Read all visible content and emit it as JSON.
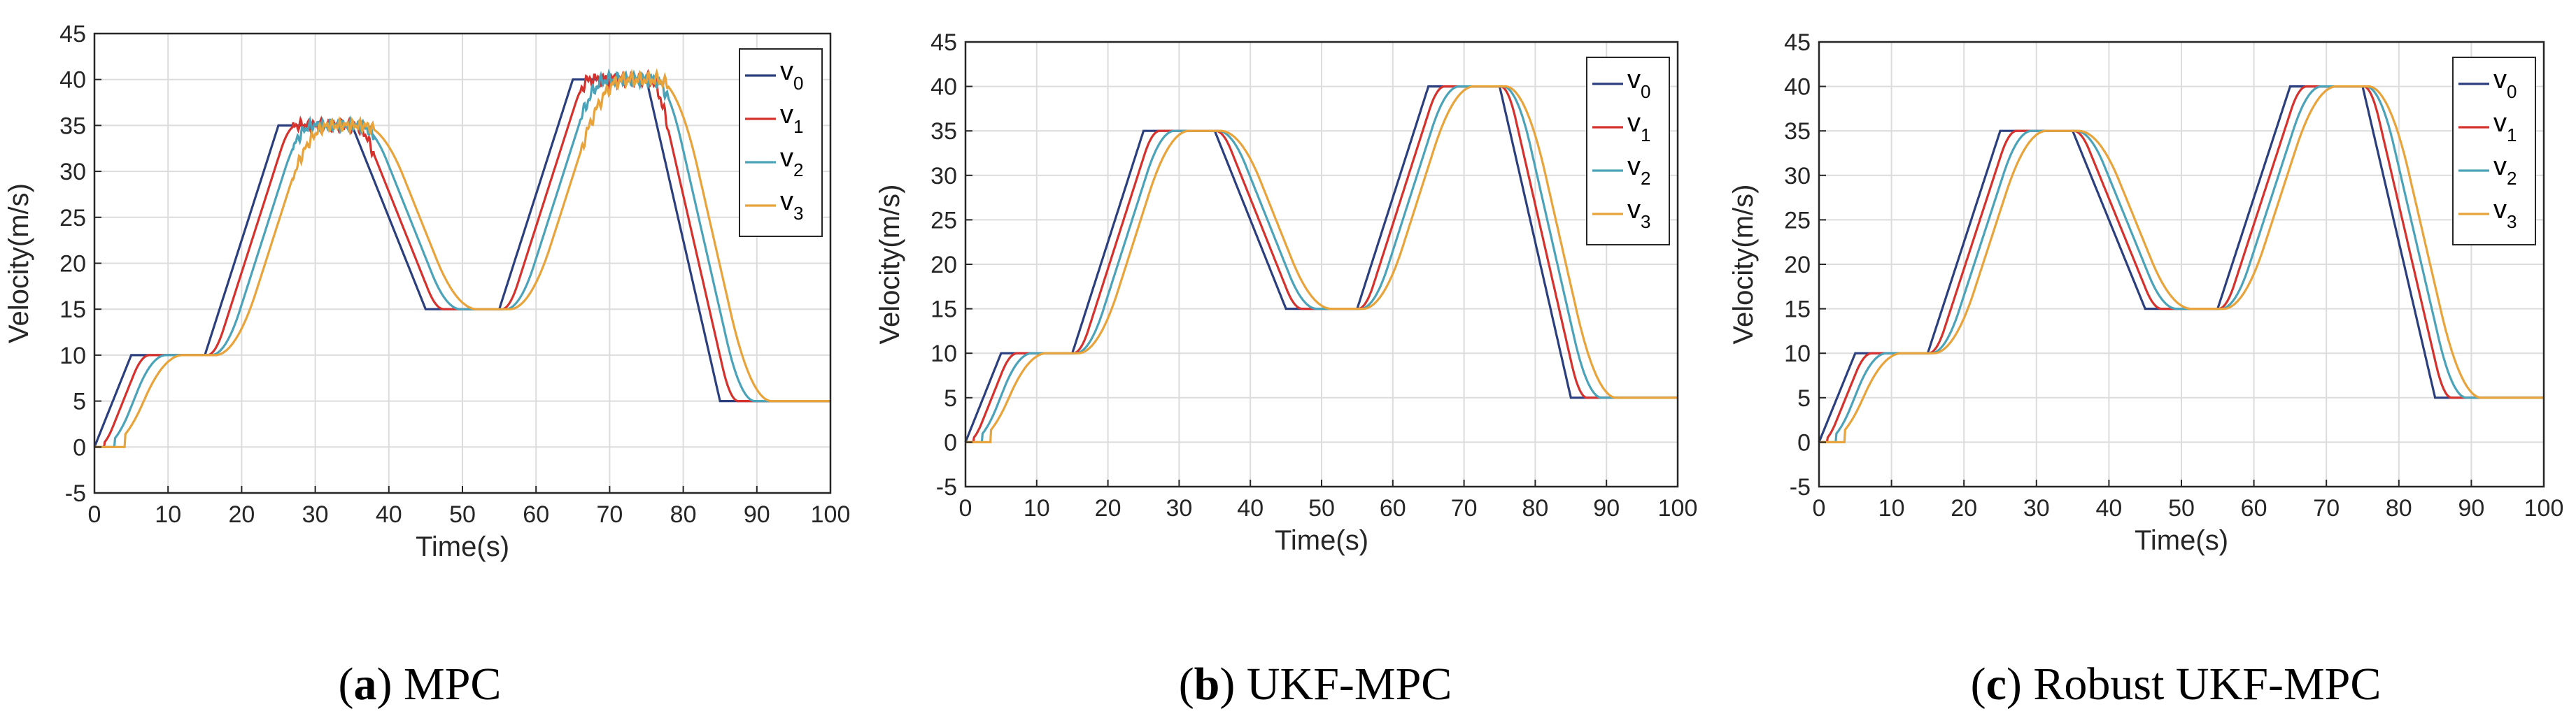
{
  "chart_data": [
    {
      "type": "line",
      "caption_letter": "a",
      "caption_text": "MPC",
      "xlabel": "Time(s)",
      "ylabel": "Velocity(m/s)",
      "xlim": [
        0,
        100
      ],
      "ylim": [
        -5,
        45
      ],
      "xticks": [
        "0",
        "10",
        "20",
        "30",
        "40",
        "50",
        "60",
        "70",
        "80",
        "90",
        "100"
      ],
      "yticks": [
        "-5",
        "0",
        "5",
        "10",
        "15",
        "20",
        "25",
        "30",
        "35",
        "40",
        "45"
      ],
      "grid": true,
      "legend_position": "top-right",
      "noise": true,
      "series": [
        {
          "name": "v",
          "sub": "0",
          "color": "#2b3f7e",
          "delay": 0,
          "smooth": 0
        },
        {
          "name": "v",
          "sub": "1",
          "color": "#d6322d",
          "delay": 1.4,
          "smooth": 1.0
        },
        {
          "name": "v",
          "sub": "2",
          "color": "#4aa3b8",
          "delay": 2.8,
          "smooth": 1.8
        },
        {
          "name": "v",
          "sub": "3",
          "color": "#e8a33a",
          "delay": 4.2,
          "smooth": 2.6
        }
      ]
    },
    {
      "type": "line",
      "caption_letter": "b",
      "caption_text": "UKF-MPC",
      "xlabel": "Time(s)",
      "ylabel": "Velocity(m/s)",
      "xlim": [
        0,
        100
      ],
      "ylim": [
        -5,
        45
      ],
      "xticks": [
        "0",
        "10",
        "20",
        "30",
        "40",
        "50",
        "60",
        "70",
        "80",
        "90",
        "100"
      ],
      "yticks": [
        "-5",
        "0",
        "5",
        "10",
        "15",
        "20",
        "25",
        "30",
        "35",
        "40",
        "45"
      ],
      "grid": true,
      "legend_position": "top-right",
      "noise": false,
      "series": [
        {
          "name": "v",
          "sub": "0",
          "color": "#2b3f7e",
          "delay": 0,
          "smooth": 0
        },
        {
          "name": "v",
          "sub": "1",
          "color": "#d6322d",
          "delay": 1.2,
          "smooth": 1.0
        },
        {
          "name": "v",
          "sub": "2",
          "color": "#4aa3b8",
          "delay": 2.4,
          "smooth": 1.8
        },
        {
          "name": "v",
          "sub": "3",
          "color": "#e8a33a",
          "delay": 3.6,
          "smooth": 2.6
        }
      ]
    },
    {
      "type": "line",
      "caption_letter": "c",
      "caption_text": "Robust UKF-MPC",
      "xlabel": "Time(s)",
      "ylabel": "Velocity(m/s)",
      "xlim": [
        0,
        100
      ],
      "ylim": [
        -5,
        45
      ],
      "xticks": [
        "0",
        "10",
        "20",
        "30",
        "40",
        "50",
        "60",
        "70",
        "80",
        "90",
        "100"
      ],
      "yticks": [
        "-5",
        "0",
        "5",
        "10",
        "15",
        "20",
        "25",
        "30",
        "35",
        "40",
        "45"
      ],
      "grid": true,
      "legend_position": "top-right",
      "noise": false,
      "series": [
        {
          "name": "v",
          "sub": "0",
          "color": "#2b3f7e",
          "delay": 0,
          "smooth": 0
        },
        {
          "name": "v",
          "sub": "1",
          "color": "#d6322d",
          "delay": 1.2,
          "smooth": 1.0
        },
        {
          "name": "v",
          "sub": "2",
          "color": "#4aa3b8",
          "delay": 2.4,
          "smooth": 1.8
        },
        {
          "name": "v",
          "sub": "3",
          "color": "#e8a33a",
          "delay": 3.6,
          "smooth": 2.6
        }
      ]
    }
  ],
  "reference_profile": {
    "t": [
      0,
      5,
      15,
      25,
      35,
      45,
      55,
      65,
      75,
      85,
      100
    ],
    "v": [
      0,
      10,
      10,
      35,
      35,
      15,
      15,
      40,
      40,
      5,
      5
    ]
  }
}
